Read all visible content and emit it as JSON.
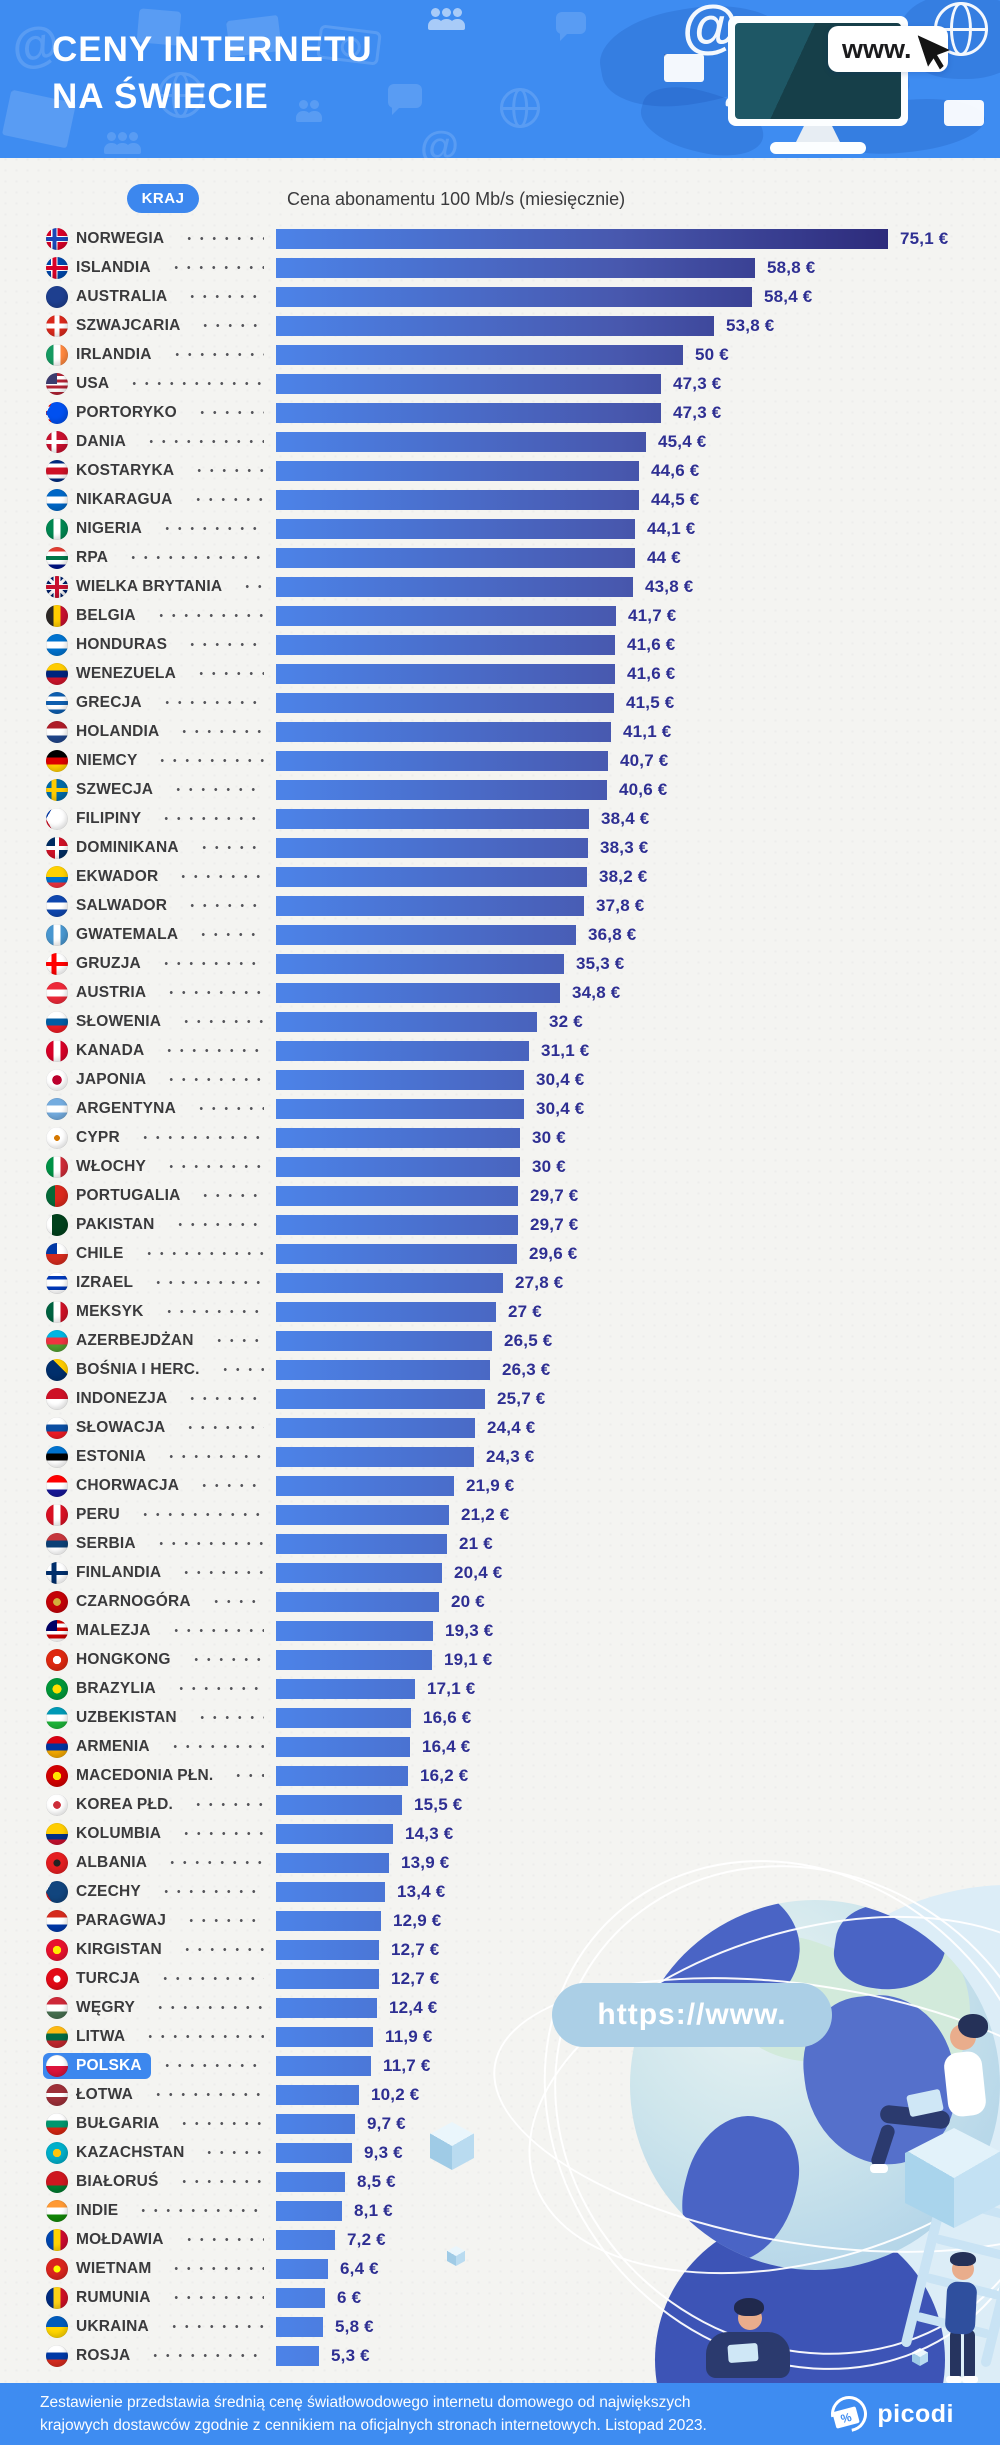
{
  "page": {
    "bg": "#F4F4F1",
    "accent": "#3C87EE",
    "banner_color": "#3E8CF1"
  },
  "header": {
    "title_line1": "CENY INTERNETU",
    "title_line2": "NA ŚWIECIE",
    "monitor_label": "www."
  },
  "chart": {
    "country_column_label": "KRAJ",
    "price_column_label": "Cena abonamentu 100 Mb/s (miesięcznie)",
    "bar_gradient": [
      "#4C83E8",
      "#4858AE",
      "#2D2B7B"
    ],
    "value_color": "#2E2F92",
    "highlight_country": "POLSKA"
  },
  "chart_data": {
    "type": "bar",
    "orientation": "horizontal",
    "title": "CENY INTERNETU NA ŚWIECIE",
    "subtitle": "Cena abonamentu 100 Mb/s (miesięcznie)",
    "unit": "EUR",
    "xlim": [
      0,
      80
    ],
    "highlight": "POLSKA",
    "categories": [
      "NORWEGIA",
      "ISLANDIA",
      "AUSTRALIA",
      "SZWAJCARIA",
      "IRLANDIA",
      "USA",
      "PORTORYKO",
      "DANIA",
      "KOSTARYKA",
      "NIKARAGUA",
      "NIGERIA",
      "RPA",
      "WIELKA BRYTANIA",
      "BELGIA",
      "HONDURAS",
      "WENEZUELA",
      "GRECJA",
      "HOLANDIA",
      "NIEMCY",
      "SZWECJA",
      "FILIPINY",
      "DOMINIKANA",
      "EKWADOR",
      "SALWADOR",
      "GWATEMALA",
      "GRUZJA",
      "AUSTRIA",
      "SŁOWENIA",
      "KANADA",
      "JAPONIA",
      "ARGENTYNA",
      "CYPR",
      "WŁOCHY",
      "PORTUGALIA",
      "PAKISTAN",
      "CHILE",
      "IZRAEL",
      "MEKSYK",
      "AZERBEJDŻAN",
      "BOŚNIA I HERC.",
      "INDONEZJA",
      "SŁOWACJA",
      "ESTONIA",
      "CHORWACJA",
      "PERU",
      "SERBIA",
      "FINLANDIA",
      "CZARNOGÓRA",
      "MALEZJA",
      "HONGKONG",
      "BRAZYLIA",
      "UZBEKISTAN",
      "ARMENIA",
      "MACEDONIA PŁN.",
      "KOREA PŁD.",
      "KOLUMBIA",
      "ALBANIA",
      "CZECHY",
      "PARAGWAJ",
      "KIRGISTAN",
      "TURCJA",
      "WĘGRY",
      "LITWA",
      "POLSKA",
      "ŁOTWA",
      "BUŁGARIA",
      "KAZACHSTAN",
      "BIAŁORUŚ",
      "INDIE",
      "MOŁDAWIA",
      "WIETNAM",
      "RUMUNIA",
      "UKRAINA",
      "ROSJA"
    ],
    "values": [
      75.1,
      58.8,
      58.4,
      53.8,
      50,
      47.3,
      47.3,
      45.4,
      44.6,
      44.5,
      44.1,
      44,
      43.8,
      41.7,
      41.6,
      41.6,
      41.5,
      41.1,
      40.7,
      40.6,
      38.4,
      38.3,
      38.2,
      37.8,
      36.8,
      35.3,
      34.8,
      32,
      31.1,
      30.4,
      30.4,
      30,
      30,
      29.7,
      29.7,
      29.6,
      27.8,
      27,
      26.5,
      26.3,
      25.7,
      24.4,
      24.3,
      21.9,
      21.2,
      21,
      20.4,
      20,
      19.3,
      19.1,
      17.1,
      16.6,
      16.4,
      16.2,
      15.5,
      14.3,
      13.9,
      13.4,
      12.9,
      12.7,
      12.7,
      12.4,
      11.9,
      11.7,
      10.2,
      9.7,
      9.3,
      8.5,
      8.1,
      7.2,
      6.4,
      6,
      5.8,
      5.3
    ],
    "value_labels": [
      "75,1 €",
      "58,8 €",
      "58,4 €",
      "53,8 €",
      "50 €",
      "47,3 €",
      "47,3 €",
      "45,4 €",
      "44,6 €",
      "44,5 €",
      "44,1 €",
      "44 €",
      "43,8 €",
      "41,7 €",
      "41,6 €",
      "41,6 €",
      "41,5 €",
      "41,1 €",
      "40,7 €",
      "40,6 €",
      "38,4 €",
      "38,3 €",
      "38,2 €",
      "37,8 €",
      "36,8 €",
      "35,3 €",
      "34,8 €",
      "32 €",
      "31,1 €",
      "30,4 €",
      "30,4 €",
      "30 €",
      "30 €",
      "29,7 €",
      "29,7 €",
      "29,6 €",
      "27,8 €",
      "27 €",
      "26,5 €",
      "26,3 €",
      "25,7 €",
      "24,4 €",
      "24,3 €",
      "21,9 €",
      "21,2 €",
      "21 €",
      "20,4 €",
      "20 €",
      "19,3 €",
      "19,1 €",
      "17,1 €",
      "16,6 €",
      "16,4 €",
      "16,2 €",
      "15,5 €",
      "14,3 €",
      "13,9 €",
      "13,4 €",
      "12,9 €",
      "12,7 €",
      "12,7 €",
      "12,4 €",
      "11,9 €",
      "11,7 €",
      "10,2 €",
      "9,7 €",
      "9,3 €",
      "8,5 €",
      "8,1 €",
      "7,2 €",
      "6,4 €",
      "6 €",
      "5,8 €",
      "5,3 €"
    ]
  },
  "flags": [
    {
      "t": "nord",
      "c": [
        "#D80027",
        "#FFFFFF",
        "#1A47B8"
      ]
    },
    {
      "t": "nord",
      "c": [
        "#0048AB",
        "#FFFFFF",
        "#D80027"
      ]
    },
    {
      "t": "s",
      "c": [
        "#1E3F8F"
      ]
    },
    {
      "t": "plus",
      "c": [
        "#DA291C",
        "#FFFFFF"
      ]
    },
    {
      "t": "v",
      "c": [
        "#169B62",
        "#FFFFFF",
        "#FF883E"
      ]
    },
    {
      "t": "canton",
      "c": [
        "#3C3B6E",
        "#B22234",
        "#FFFFFF",
        "#B22234",
        "#FFFFFF",
        "#B22234",
        "#FFFFFF",
        "#B22234"
      ]
    },
    {
      "t": "tri",
      "c": [
        "#0050F0",
        "#ED0000",
        "#FFFFFF",
        "#ED0000",
        "#FFFFFF",
        "#ED0000"
      ]
    },
    {
      "t": "nord",
      "c": [
        "#C8102E",
        "#FFFFFF"
      ]
    },
    {
      "t": "hw",
      "c": [
        "#002B7F",
        "#FFFFFF",
        "#CE1126",
        "#FFFFFF",
        "#002B7F"
      ],
      "w": [
        17,
        17,
        32,
        17,
        17
      ]
    },
    {
      "t": "h",
      "c": [
        "#0067C6",
        "#FFFFFF",
        "#0067C6"
      ]
    },
    {
      "t": "v",
      "c": [
        "#008751",
        "#FFFFFF",
        "#008751"
      ]
    },
    {
      "t": "h",
      "c": [
        "#E03C31",
        "#FFFFFF",
        "#007749",
        "#FFFFFF",
        "#001489"
      ]
    },
    {
      "t": "uk",
      "c": [
        "#012169",
        "#F5F5F5",
        "#C8102E"
      ]
    },
    {
      "t": "v",
      "c": [
        "#2D2926",
        "#FFCD00",
        "#C8102E"
      ]
    },
    {
      "t": "h",
      "c": [
        "#0073CF",
        "#FFFFFF",
        "#0073CF"
      ]
    },
    {
      "t": "h",
      "c": [
        "#FFCC00",
        "#00247D",
        "#CF142B"
      ]
    },
    {
      "t": "h",
      "c": [
        "#0D5EAF",
        "#FFFFFF",
        "#0D5EAF",
        "#FFFFFF",
        "#0D5EAF"
      ]
    },
    {
      "t": "h",
      "c": [
        "#AE1C28",
        "#FFFFFF",
        "#21468B"
      ]
    },
    {
      "t": "h",
      "c": [
        "#000000",
        "#DD0000",
        "#FFCE00"
      ]
    },
    {
      "t": "nord",
      "c": [
        "#006AA7",
        "#FECC02"
      ]
    },
    {
      "t": "tri",
      "c": [
        "#FFFFFF",
        "#0038A8",
        "#CE1126"
      ]
    },
    {
      "t": "quad",
      "c": [
        "#002D62",
        "#CE1126",
        "#FFFFFF"
      ]
    },
    {
      "t": "hw",
      "c": [
        "#FFD100",
        "#0072CE",
        "#EF3340"
      ],
      "w": [
        50,
        25,
        25
      ]
    },
    {
      "t": "h",
      "c": [
        "#0F47AF",
        "#FFFFFF",
        "#0F47AF"
      ]
    },
    {
      "t": "v",
      "c": [
        "#4997D0",
        "#FFFFFF",
        "#4997D0"
      ]
    },
    {
      "t": "nord",
      "c": [
        "#FFFFFF",
        "#FF0000"
      ]
    },
    {
      "t": "h",
      "c": [
        "#ED2939",
        "#FFFFFF",
        "#ED2939"
      ]
    },
    {
      "t": "h",
      "c": [
        "#FFFFFF",
        "#005DA4",
        "#ED1C24"
      ]
    },
    {
      "t": "v",
      "c": [
        "#D80027",
        "#FFFFFF",
        "#D80027"
      ]
    },
    {
      "t": "dot",
      "c": [
        "#FFFFFF",
        "#BC002D"
      ],
      "r": 30
    },
    {
      "t": "h",
      "c": [
        "#74ACDF",
        "#FFFFFF",
        "#74ACDF"
      ]
    },
    {
      "t": "dot",
      "c": [
        "#FFFFFF",
        "#D57800"
      ],
      "r": 18
    },
    {
      "t": "v",
      "c": [
        "#009246",
        "#FFFFFF",
        "#CE2B37"
      ]
    },
    {
      "t": "vw",
      "c": [
        "#046A38",
        "#DA291C"
      ],
      "w": [
        40,
        60
      ]
    },
    {
      "t": "vw",
      "c": [
        "#FFFFFF",
        "#01411C"
      ],
      "w": [
        28,
        72
      ]
    },
    {
      "t": "canton",
      "c": [
        "#0039A6",
        "#FFFFFF",
        "#D52B1E"
      ]
    },
    {
      "t": "hw",
      "c": [
        "#FFFFFF",
        "#0038B8",
        "#FFFFFF",
        "#0038B8",
        "#FFFFFF"
      ],
      "w": [
        18,
        16,
        32,
        16,
        18
      ]
    },
    {
      "t": "v",
      "c": [
        "#006341",
        "#FFFFFF",
        "#CE1126"
      ]
    },
    {
      "t": "h",
      "c": [
        "#00B5E2",
        "#EF3340",
        "#509E2F"
      ]
    },
    {
      "t": "diag",
      "c": [
        "#002F6C",
        "#FECB00"
      ]
    },
    {
      "t": "h",
      "c": [
        "#CE1126",
        "#FFFFFF"
      ]
    },
    {
      "t": "h",
      "c": [
        "#FFFFFF",
        "#0B4EA2",
        "#EE1C25"
      ]
    },
    {
      "t": "h",
      "c": [
        "#0072CE",
        "#000000",
        "#FFFFFF"
      ]
    },
    {
      "t": "h",
      "c": [
        "#FF0000",
        "#FFFFFF",
        "#171796"
      ]
    },
    {
      "t": "v",
      "c": [
        "#D91023",
        "#FFFFFF",
        "#D91023"
      ]
    },
    {
      "t": "h",
      "c": [
        "#C6363C",
        "#0C4076",
        "#FFFFFF"
      ]
    },
    {
      "t": "nord",
      "c": [
        "#FFFFFF",
        "#002F6C"
      ]
    },
    {
      "t": "dot",
      "c": [
        "#C40308",
        "#D3AE3B"
      ],
      "r": 24
    },
    {
      "t": "canton",
      "c": [
        "#010066",
        "#CC0001",
        "#FFFFFF",
        "#CC0001",
        "#FFFFFF",
        "#CC0001",
        "#FFFFFF"
      ]
    },
    {
      "t": "dot",
      "c": [
        "#DE2910",
        "#FFFFFF"
      ],
      "r": 26
    },
    {
      "t": "dot",
      "c": [
        "#009739",
        "#FFDF00"
      ],
      "r": 28
    },
    {
      "t": "h",
      "c": [
        "#0099B5",
        "#FFFFFF",
        "#1EB53A"
      ]
    },
    {
      "t": "h",
      "c": [
        "#D90012",
        "#0033A0",
        "#F2A800"
      ]
    },
    {
      "t": "dot",
      "c": [
        "#D20000",
        "#FFE600"
      ],
      "r": 26
    },
    {
      "t": "dot",
      "c": [
        "#FFFFFF",
        "#CD2E3A"
      ],
      "r": 24
    },
    {
      "t": "hw",
      "c": [
        "#FFCD00",
        "#003087",
        "#C8102E"
      ],
      "w": [
        50,
        25,
        25
      ]
    },
    {
      "t": "dot",
      "c": [
        "#E41E20",
        "#222222"
      ],
      "r": 22
    },
    {
      "t": "tri",
      "c": [
        "#11457E",
        "#FFFFFF",
        "#D7141A"
      ]
    },
    {
      "t": "h",
      "c": [
        "#D52B1E",
        "#FFFFFF",
        "#0038A8"
      ]
    },
    {
      "t": "dot",
      "c": [
        "#E8112D",
        "#FFEC00"
      ],
      "r": 26
    },
    {
      "t": "dot",
      "c": [
        "#E30A17",
        "#FFFFFF"
      ],
      "r": 22
    },
    {
      "t": "h",
      "c": [
        "#CE2939",
        "#FFFFFF",
        "#477050"
      ]
    },
    {
      "t": "h",
      "c": [
        "#FDB913",
        "#006A44",
        "#C1272D"
      ]
    },
    {
      "t": "h",
      "c": [
        "#FFFFFF",
        "#DC143C"
      ]
    },
    {
      "t": "hw",
      "c": [
        "#9E3039",
        "#FFFFFF",
        "#9E3039"
      ],
      "w": [
        40,
        20,
        40
      ]
    },
    {
      "t": "h",
      "c": [
        "#FFFFFF",
        "#00966E",
        "#D62612"
      ]
    },
    {
      "t": "dot",
      "c": [
        "#00AFCA",
        "#FEC50C"
      ],
      "r": 26
    },
    {
      "t": "hw",
      "c": [
        "#CE1720",
        "#007C30"
      ],
      "w": [
        66,
        34
      ]
    },
    {
      "t": "h",
      "c": [
        "#FF9933",
        "#FFFFFF",
        "#138808"
      ]
    },
    {
      "t": "v",
      "c": [
        "#0046AE",
        "#FFD200",
        "#CC092F"
      ]
    },
    {
      "t": "dot",
      "c": [
        "#DA251D",
        "#FFFF00"
      ],
      "r": 22
    },
    {
      "t": "v",
      "c": [
        "#002B7F",
        "#FCD116",
        "#CE1126"
      ]
    },
    {
      "t": "h",
      "c": [
        "#005BBB",
        "#FFD500"
      ]
    },
    {
      "t": "h",
      "c": [
        "#FFFFFF",
        "#0039A6",
        "#D52B1E"
      ]
    }
  ],
  "illustration": {
    "pill_text": "https://www."
  },
  "footer": {
    "line1": "Zestawienie przedstawia średnią cenę światłowodowego internetu domowego od największych",
    "line2": "krajowych dostawców zgodnie z cennikiem na oficjalnych stronach internetowych. Listopad 2023.",
    "brand": "picodi"
  }
}
